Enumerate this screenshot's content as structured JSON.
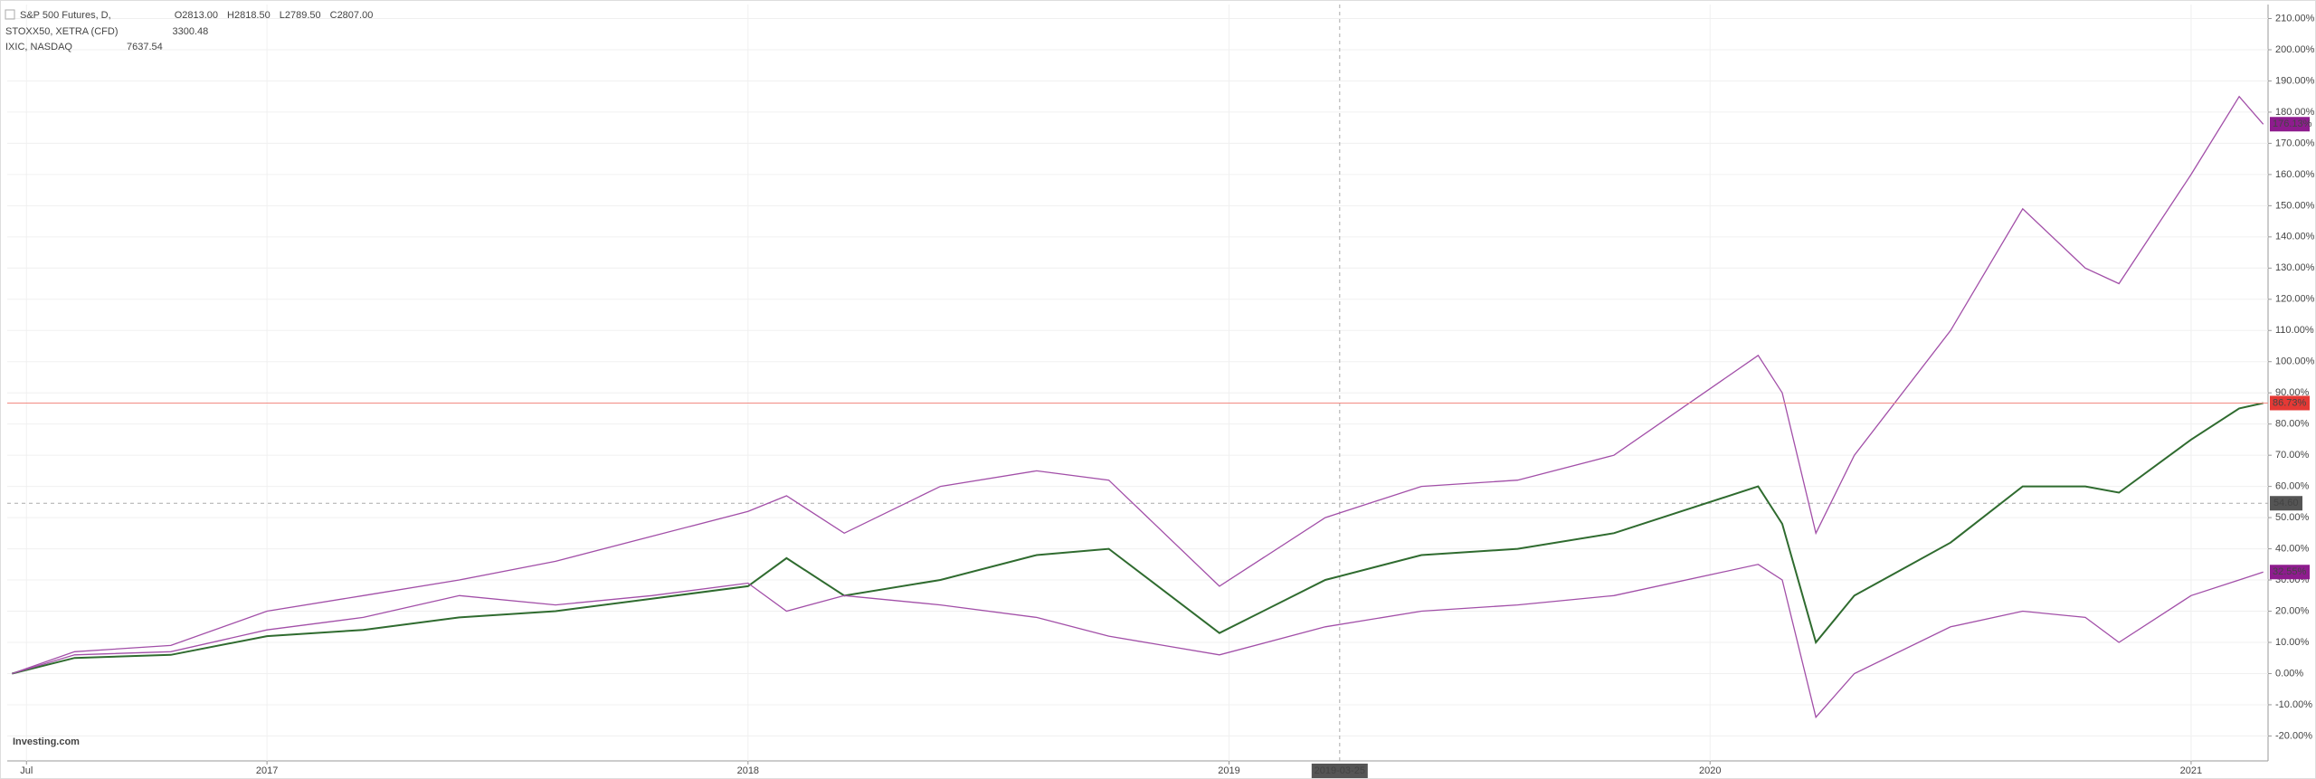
{
  "chart_data": {
    "type": "line",
    "logo": "Investing.com",
    "header": {
      "ohlc": [
        "O2813.00",
        "H2818.50",
        "L2789.50",
        "C2807.00"
      ]
    },
    "x": [
      2016.47,
      2016.6,
      2016.8,
      2017.0,
      2017.2,
      2017.4,
      2017.6,
      2017.8,
      2018.0,
      2018.08,
      2018.2,
      2018.4,
      2018.6,
      2018.75,
      2018.98,
      2019.2,
      2019.4,
      2019.6,
      2019.8,
      2020.1,
      2020.15,
      2020.22,
      2020.3,
      2020.5,
      2020.65,
      2020.78,
      2020.85,
      2021.0,
      2021.1,
      2021.15
    ],
    "series": [
      {
        "name": "IXIC, NASDAQ",
        "quote": "7637.54",
        "color": "#a24fa8",
        "last_label": "176.13%",
        "values": [
          0,
          7,
          9,
          20,
          25,
          30,
          36,
          44,
          52,
          57,
          45,
          60,
          65,
          62,
          28,
          50,
          60,
          62,
          70,
          102,
          90,
          45,
          70,
          110,
          149,
          130,
          125,
          160,
          185,
          176.13
        ]
      },
      {
        "name": "S&P 500 Futures, D,",
        "color": "#2f6b2f",
        "last_label": "86.73%",
        "values": [
          0,
          5,
          6,
          12,
          14,
          18,
          20,
          24,
          28,
          37,
          25,
          30,
          38,
          40,
          13,
          30,
          38,
          40,
          45,
          60,
          48,
          10,
          25,
          42,
          60,
          60,
          58,
          75,
          85,
          86.73
        ]
      },
      {
        "name": "STOXX50, XETRA (CFD)",
        "quote": "3300.48",
        "color": "#a24fa8",
        "last_label": "32.55%",
        "values": [
          0,
          6,
          7,
          14,
          18,
          25,
          22,
          25,
          29,
          20,
          25,
          22,
          18,
          12,
          6,
          15,
          20,
          22,
          25,
          35,
          30,
          -14,
          0,
          15,
          20,
          18,
          10,
          25,
          30,
          32.55
        ]
      }
    ],
    "xlim": [
      2016.46,
      2021.16
    ],
    "ylim": [
      -28,
      214.5
    ],
    "xticks": [
      {
        "value": 2016.5,
        "label": "Jul"
      },
      2017,
      2018,
      2019,
      2020,
      2021
    ],
    "yticks": [
      {
        "value": -20,
        "label": "-20.00%"
      },
      {
        "value": -10,
        "label": "-10.00%"
      },
      {
        "value": 0,
        "label": "0.00%"
      },
      {
        "value": 10,
        "label": "10.00%"
      },
      {
        "value": 20,
        "label": "20.00%"
      },
      {
        "value": 30,
        "label": "30.00%"
      },
      {
        "value": 40,
        "label": "40.00%"
      },
      {
        "value": 50,
        "label": "50.00%"
      },
      {
        "value": 60,
        "label": "60.00%"
      },
      {
        "value": 70,
        "label": "70.00%"
      },
      {
        "value": 80,
        "label": "80.00%"
      },
      {
        "value": 90,
        "label": "90.00%"
      },
      {
        "value": 100,
        "label": "100.00%"
      },
      {
        "value": 110,
        "label": "110.00%"
      },
      {
        "value": 120,
        "label": "120.00%"
      },
      {
        "value": 130,
        "label": "130.00%"
      },
      {
        "value": 140,
        "label": "140.00%"
      },
      {
        "value": 150,
        "label": "150.00%"
      },
      {
        "value": 160,
        "label": "160.00%"
      },
      {
        "value": 170,
        "label": "170.00%"
      },
      {
        "value": 180,
        "label": "180.00%"
      },
      {
        "value": 190,
        "label": "190.00%"
      },
      {
        "value": 200,
        "label": "200.00%"
      },
      {
        "value": 210,
        "label": "210.00%"
      }
    ],
    "grid": true,
    "crosshair": {
      "x": {
        "value": 2019.23,
        "label": "2019-03-25"
      },
      "y": {
        "value": 54.6,
        "label": "54.60"
      }
    }
  }
}
